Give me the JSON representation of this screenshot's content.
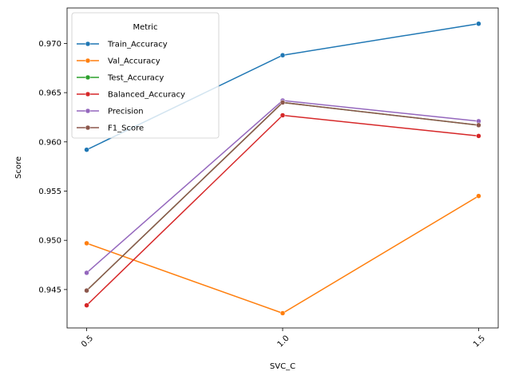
{
  "chart_data": {
    "type": "line",
    "title": "",
    "xlabel": "SVC_C",
    "ylabel": "Score",
    "x": [
      0.5,
      1.0,
      1.5
    ],
    "x_tick_labels": [
      "0.5",
      "1.0",
      "1.5"
    ],
    "x_tick_rotation": 45,
    "xlim": [
      0.45,
      1.55
    ],
    "y_ticks": [
      0.945,
      0.95,
      0.955,
      0.96,
      0.965,
      0.97
    ],
    "y_tick_labels": [
      "0.945",
      "0.950",
      "0.955",
      "0.960",
      "0.965",
      "0.970"
    ],
    "ylim": [
      0.9411,
      0.9736
    ],
    "grid": false,
    "legend": {
      "title": "Metric",
      "placement": "upper-left"
    },
    "markers": "circle",
    "series": [
      {
        "name": "Train_Accuracy",
        "color": "#1f77b4",
        "values": [
          0.9592,
          0.9688,
          0.972
        ]
      },
      {
        "name": "Val_Accuracy",
        "color": "#ff7f0e",
        "values": [
          0.9497,
          0.9426,
          0.9545
        ]
      },
      {
        "name": "Test_Accuracy",
        "color": "#2ca02c",
        "values": [
          0.9449,
          0.964,
          0.9617
        ]
      },
      {
        "name": "Balanced_Accuracy",
        "color": "#d62728",
        "values": [
          0.9434,
          0.9627,
          0.9606
        ]
      },
      {
        "name": "Precision",
        "color": "#9467bd",
        "values": [
          0.9467,
          0.9642,
          0.9621
        ]
      },
      {
        "name": "F1_Score",
        "color": "#8c564b",
        "values": [
          0.9449,
          0.964,
          0.9617
        ]
      }
    ]
  }
}
